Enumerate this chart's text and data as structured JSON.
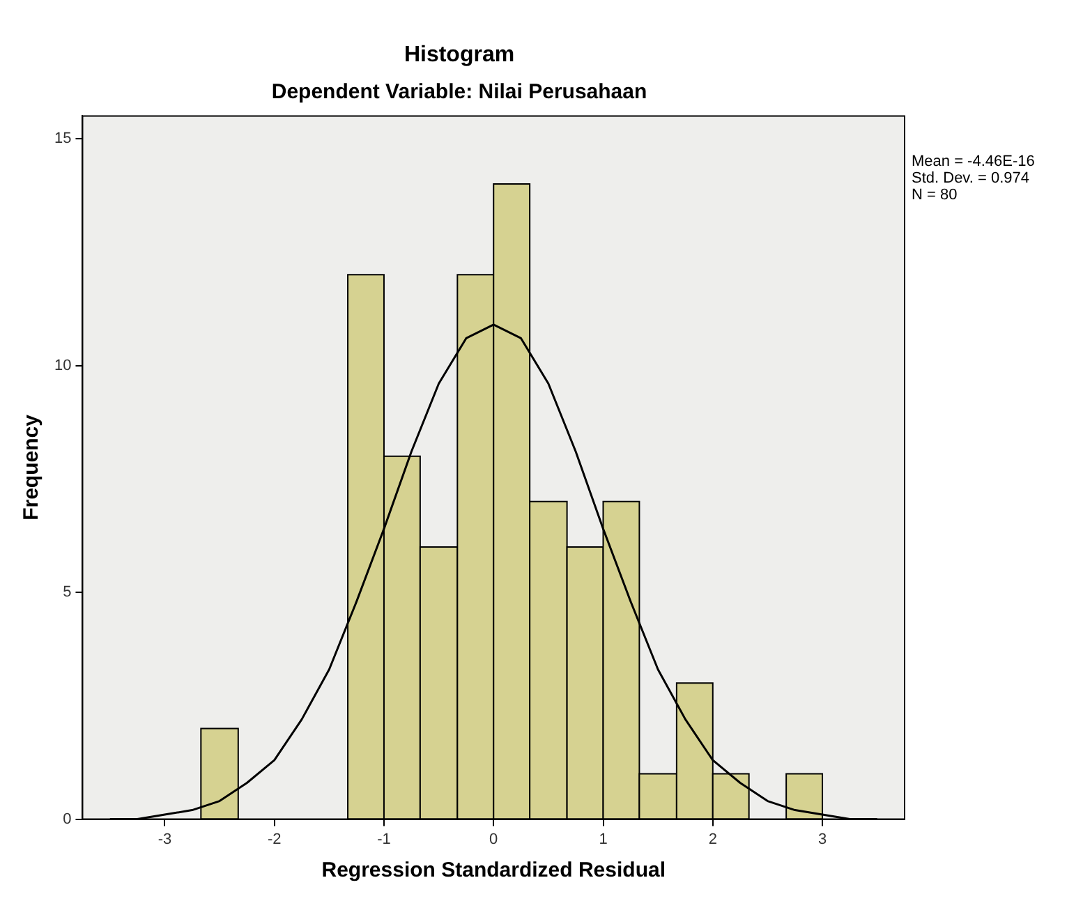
{
  "chart_data": {
    "type": "histogram",
    "title": "Histogram",
    "subtitle": "Dependent Variable: Nilai Perusahaan",
    "xlabel": "Regression Standardized Residual",
    "ylabel": "Frequency",
    "bins": [
      -2.67,
      -2.33,
      -1.33,
      -1,
      -0.67,
      -0.33,
      0,
      0.33,
      0.67,
      1,
      1.33,
      1.67,
      2,
      2.33,
      2.67,
      3
    ],
    "values": [
      2,
      0,
      12,
      8,
      6,
      12,
      14,
      7,
      6,
      7,
      1,
      3,
      1,
      0,
      1
    ],
    "color": "#d6d291",
    "series": [
      {
        "type": "line",
        "color": "#000000",
        "x": [
          -3.5,
          -3.25,
          -3,
          -2.75,
          -2.5,
          -2.25,
          -2,
          -1.75,
          -1.5,
          -1.25,
          -1,
          -0.75,
          -0.5,
          -0.25,
          0,
          0.25,
          0.5,
          0.75,
          1,
          1.25,
          1.5,
          1.75,
          2,
          2.25,
          2.5,
          2.75,
          3,
          3.25,
          3.5
        ],
        "values": [
          0,
          0,
          0.1,
          0.2,
          0.4,
          0.8,
          1.3,
          2.2,
          3.3,
          4.8,
          6.4,
          8.1,
          9.6,
          10.6,
          10.9,
          10.6,
          9.6,
          8.1,
          6.4,
          4.8,
          3.3,
          2.2,
          1.3,
          0.8,
          0.4,
          0.2,
          0.1,
          0,
          0
        ]
      }
    ],
    "xlim": [
      -3.75,
      3.75
    ],
    "xticks": [
      -3,
      -2,
      -1,
      0,
      1,
      2,
      3
    ],
    "ylim": [
      0,
      15.5
    ],
    "yticks": [
      0,
      5,
      10,
      15
    ],
    "grid": false,
    "legend": false,
    "marker": "none",
    "line_style": "solid",
    "annotations": [
      "Mean = -4.46E-16",
      "Std. Dev. = 0.974",
      "N = 80"
    ]
  }
}
